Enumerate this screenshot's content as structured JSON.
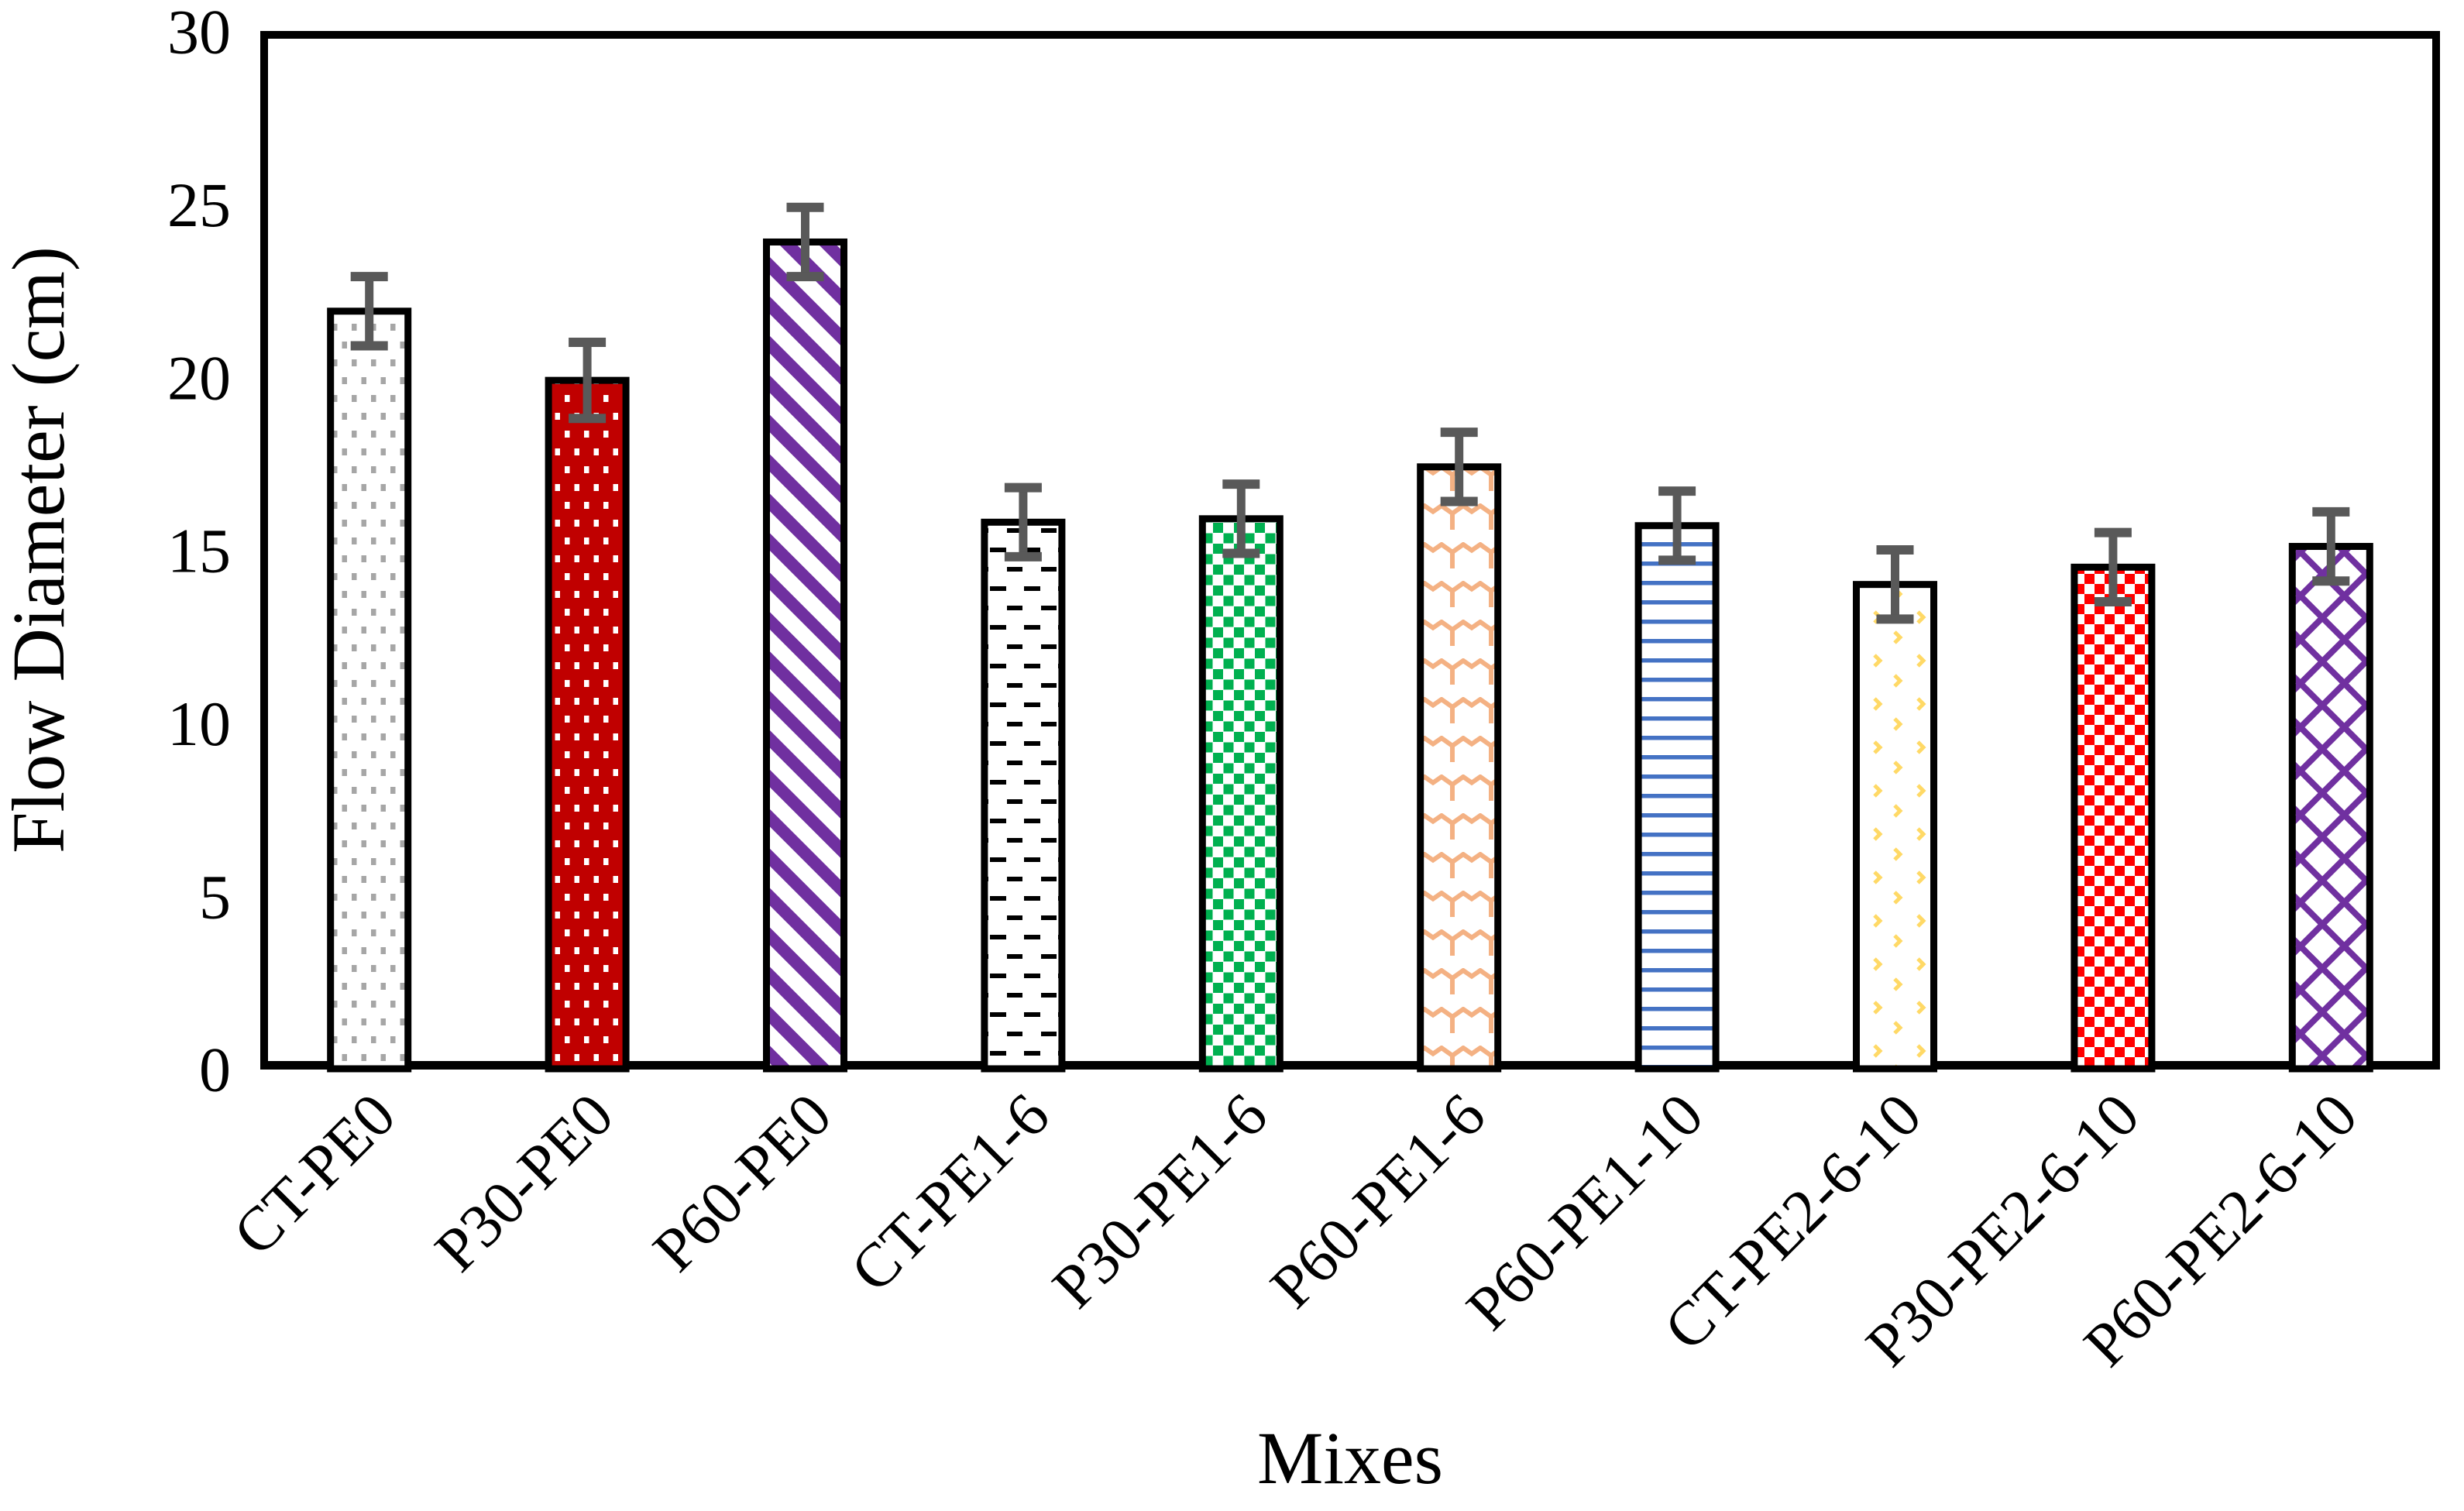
{
  "figure": {
    "kind": "bar chart figure",
    "background": "#ffffff",
    "frame_color": "#000000",
    "error_bar_color": "#595959"
  },
  "chart_data": {
    "type": "bar",
    "title": "",
    "xlabel": "Mixes",
    "ylabel": "Flow Diameter (cm)",
    "ylim": [
      0,
      30
    ],
    "yticks": [
      0,
      5,
      10,
      15,
      20,
      25,
      30
    ],
    "grid": false,
    "legend": "none",
    "categories": [
      "CT-PE0",
      "P30-PE0",
      "P60-PE0",
      "CT-PE1-6",
      "P30-PE1-6",
      "P60-PE1-6",
      "P60-PE1-10",
      "CT-PE2-6-10",
      "P30-PE2-6-10",
      "P60-PE2-6-10"
    ],
    "values": [
      21.9,
      19.9,
      23.9,
      15.8,
      15.9,
      17.4,
      15.7,
      14.0,
      14.5,
      15.1
    ],
    "errors": [
      1.0,
      1.1,
      1.0,
      1.0,
      1.0,
      1.0,
      1.0,
      1.0,
      1.0,
      1.0
    ],
    "bar_outline_color": "#000000",
    "bar_styles": [
      {
        "pattern": "offset-dots",
        "fg": "#a6a6a6",
        "bg": "#ffffff"
      },
      {
        "pattern": "offset-dots",
        "fg": "#ffffff",
        "bg": "#c00000"
      },
      {
        "pattern": "diag-stripes",
        "fg": "#7030a0",
        "bg": "#ffffff"
      },
      {
        "pattern": "h-dashes",
        "fg": "#000000",
        "bg": "#ffffff"
      },
      {
        "pattern": "checker",
        "fg": "#00b050",
        "bg": "#ffffff"
      },
      {
        "pattern": "wave",
        "fg": "#f4b183",
        "bg": "#ffffff"
      },
      {
        "pattern": "h-lines",
        "fg": "#4472c4",
        "bg": "#ffffff"
      },
      {
        "pattern": "chevrons",
        "fg": "#ffd966",
        "bg": "#ffffff"
      },
      {
        "pattern": "checker-small",
        "fg": "#ff0000",
        "bg": "#ffffff"
      },
      {
        "pattern": "diag-cross",
        "fg": "#7030a0",
        "bg": "#ffffff"
      }
    ]
  }
}
